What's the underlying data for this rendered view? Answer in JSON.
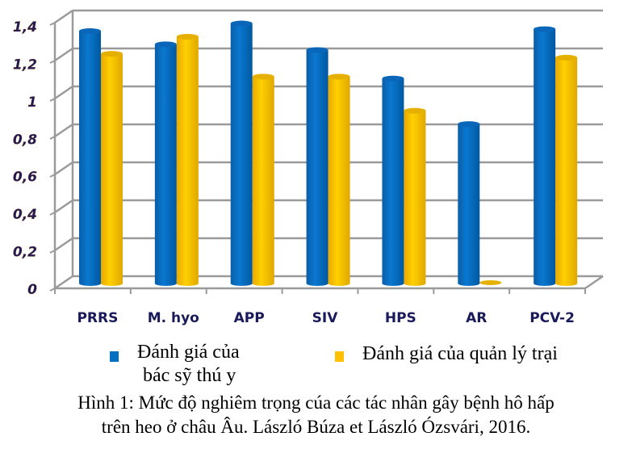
{
  "chart_data": {
    "type": "bar",
    "style": "3d-cylinder",
    "categories": [
      "PRRS",
      "M. hyo",
      "APP",
      "SIV",
      "HPS",
      "AR",
      "PCV-2"
    ],
    "series": [
      {
        "name": "Đánh giá của bác sỹ thú y",
        "color": "#0070C0",
        "values": [
          1.33,
          1.26,
          1.37,
          1.23,
          1.08,
          0.84,
          1.34
        ]
      },
      {
        "name": "Đánh giá của quản lý trại",
        "color": "#FFC000",
        "values": [
          1.21,
          1.3,
          1.09,
          1.09,
          0.91,
          0.0,
          1.19
        ]
      }
    ],
    "yticks": [
      "0",
      "0,2",
      "0,4",
      "0,6",
      "0,8",
      "1",
      "1,2",
      "1,4"
    ],
    "ylim": [
      0,
      1.4
    ],
    "grid": true,
    "legend_position": "bottom"
  },
  "legend": {
    "blue_line1": "Đánh giá của",
    "blue_line2": "bác sỹ thú y",
    "yellow": "Đánh giá của quản lý trại"
  },
  "caption": {
    "line1": "Hình 1: Mức độ nghiêm trọng cúa các tác nhân gây bệnh hô hấp",
    "line2": "trên heo ở châu Âu. László Búza et László Ózsvári, 2016."
  }
}
